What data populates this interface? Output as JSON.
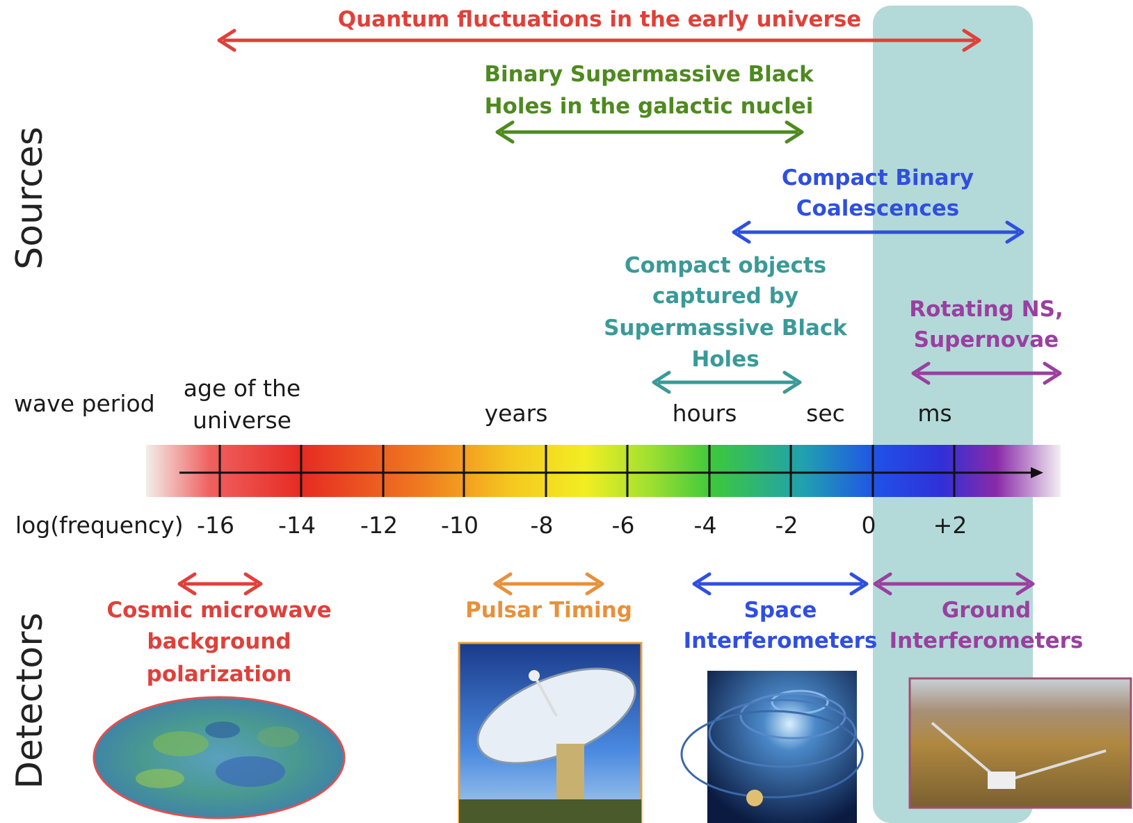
{
  "side_labels": {
    "sources": "Sources",
    "detectors": "Detectors"
  },
  "axis": {
    "wave_period_label": "wave period",
    "frequency_label": "log(frequency)",
    "periods": {
      "age_line1": "age of the",
      "age_line2": "universe",
      "years": "years",
      "hours": "hours",
      "sec": "sec",
      "ms": "ms"
    },
    "ticks": [
      "-16",
      "-14",
      "-12",
      "-10",
      "-8",
      "-6",
      "-4",
      "-2",
      "0",
      "+2"
    ]
  },
  "sources": {
    "quantum": {
      "line1": "Quantum fluctuations in the early universe",
      "color": "#e0403a"
    },
    "smbh": {
      "line1": "Binary Supermassive Black",
      "line2": "Holes in the galactic nuclei",
      "color": "#4e8a1f"
    },
    "cbc": {
      "line1": "Compact Binary",
      "line2": "Coalescences",
      "color": "#2f4fe0"
    },
    "emri": {
      "line1": "Compact objects",
      "line2": "captured by",
      "line3": "Supermassive Black",
      "line4": "Holes",
      "color": "#3a9a98"
    },
    "rotating": {
      "line1": "Rotating NS,",
      "line2": "Supernovae",
      "color": "#9a3fa0"
    }
  },
  "detectors": {
    "cmb": {
      "line1": "Cosmic microwave",
      "line2": "background",
      "line3": "polarization",
      "color": "#e0403a"
    },
    "pulsar": {
      "line1": "Pulsar Timing",
      "color": "#e8903a"
    },
    "space": {
      "line1": "Space",
      "line2": "Interferometers",
      "color": "#2f4fe0"
    },
    "ground": {
      "line1": "Ground",
      "line2": "Interferometers",
      "color": "#9a3fa0"
    }
  },
  "band_color": "#b3dad8"
}
